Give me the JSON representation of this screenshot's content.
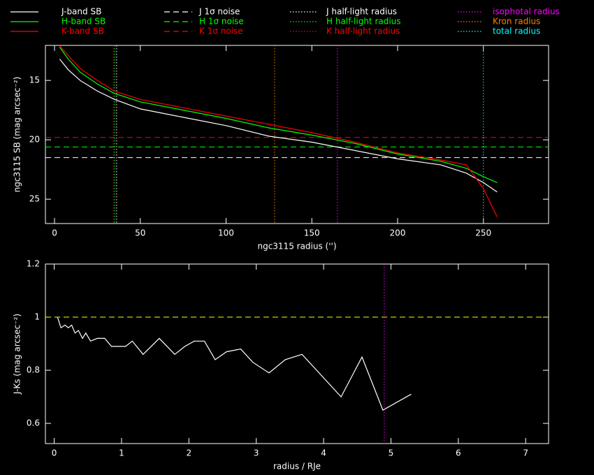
{
  "chart_data": [
    {
      "type": "line",
      "xlabel": "ngc3115 radius ('')",
      "ylabel": "ngc3115 SB (mag arcsec⁻²)",
      "xlim": [
        -5.3,
        288
      ],
      "ylim": [
        27.05,
        12.05
      ],
      "xticks": [
        0,
        50,
        100,
        150,
        200,
        250
      ],
      "yticks": [
        15,
        20,
        25
      ],
      "series": [
        {
          "name": "J-band SB",
          "color": "#ffffff",
          "x": [
            3,
            8,
            15,
            25,
            35,
            50,
            75,
            100,
            125,
            150,
            175,
            200,
            225,
            240,
            250,
            258
          ],
          "values": [
            13.2,
            14.1,
            15,
            15.9,
            16.6,
            17.4,
            18.1,
            18.8,
            19.7,
            20.2,
            20.9,
            21.6,
            22.1,
            22.8,
            23.6,
            24.4
          ]
        },
        {
          "name": "H-band SB",
          "color": "#00ff00",
          "x": [
            3,
            8,
            15,
            25,
            35,
            50,
            75,
            100,
            125,
            150,
            175,
            200,
            225,
            240,
            250,
            258
          ],
          "values": [
            12.2,
            13.2,
            14.3,
            15.3,
            16.1,
            16.8,
            17.5,
            18.2,
            19,
            19.6,
            20.3,
            21.2,
            21.8,
            22.4,
            23.1,
            23.6
          ]
        },
        {
          "name": "K-band SB",
          "color": "#ff0000",
          "x": [
            3,
            8,
            15,
            25,
            35,
            50,
            75,
            100,
            125,
            150,
            175,
            200,
            225,
            240,
            250,
            258
          ],
          "values": [
            12.1,
            12.9,
            14,
            15,
            15.9,
            16.6,
            17.3,
            18,
            18.7,
            19.4,
            20.2,
            21.1,
            21.7,
            22.1,
            24.1,
            26.5
          ]
        }
      ],
      "hlines": [
        {
          "name": "J 1σ noise",
          "color": "#ffffff",
          "style": "dashed",
          "value": 21.5
        },
        {
          "name": "H 1σ noise",
          "color": "#00ff00",
          "style": "dashed",
          "value": 20.6
        },
        {
          "name": "K 1σ noise",
          "color": "#ff0000",
          "style": "dashed",
          "value": 19.8
        }
      ],
      "vlines": [
        {
          "name": "J half-light radius",
          "color": "#ffffff",
          "style": "dotted",
          "value": 36.2
        },
        {
          "name": "H half-light radius",
          "color": "#00ff00",
          "style": "dotted",
          "value": 35
        },
        {
          "name": "K half-light radius",
          "color": "#ff0000",
          "style": "dotted",
          "value": 34.3
        },
        {
          "name": "isophotal radius",
          "color": "#ff00ff",
          "style": "dotted",
          "value": 164.9
        },
        {
          "name": "Kron radius",
          "color": "#ff8000",
          "style": "dotted",
          "value": 128.3
        },
        {
          "name": "total radius",
          "color": "#00ffff",
          "style": "dotted",
          "value": 250
        }
      ]
    },
    {
      "type": "line",
      "xlabel": "radius / RJe",
      "ylabel": "J-Ks (mag arcsec⁻²)",
      "xlim": [
        -0.13,
        7.34
      ],
      "ylim": [
        0.524,
        1.2
      ],
      "xticks": [
        0,
        1,
        2,
        3,
        4,
        5,
        6,
        7
      ],
      "yticks": [
        0.6,
        0.8,
        1,
        1.2
      ],
      "series": [
        {
          "color": "#ffffff",
          "x": [
            0.05,
            0.1,
            0.16,
            0.21,
            0.26,
            0.31,
            0.36,
            0.42,
            0.47,
            0.54,
            0.64,
            0.75,
            0.85,
            1.06,
            1.16,
            1.32,
            1.56,
            1.79,
            1.94,
            2.08,
            2.23,
            2.39,
            2.56,
            2.77,
            2.95,
            3.19,
            3.43,
            3.68,
            4.26,
            4.57,
            4.88,
            5.3
          ],
          "values": [
            1.0,
            0.96,
            0.97,
            0.96,
            0.97,
            0.94,
            0.95,
            0.92,
            0.94,
            0.91,
            0.92,
            0.92,
            0.89,
            0.89,
            0.91,
            0.86,
            0.92,
            0.86,
            0.89,
            0.91,
            0.91,
            0.84,
            0.87,
            0.88,
            0.83,
            0.79,
            0.84,
            0.86,
            0.7,
            0.85,
            0.65,
            0.71
          ]
        }
      ],
      "hlines": [
        {
          "color": "#ffff00",
          "style": "dashed",
          "value": 1
        }
      ],
      "vlines": [
        {
          "color": "#ff00ff",
          "style": "dotted",
          "value": 4.9
        }
      ]
    }
  ]
}
